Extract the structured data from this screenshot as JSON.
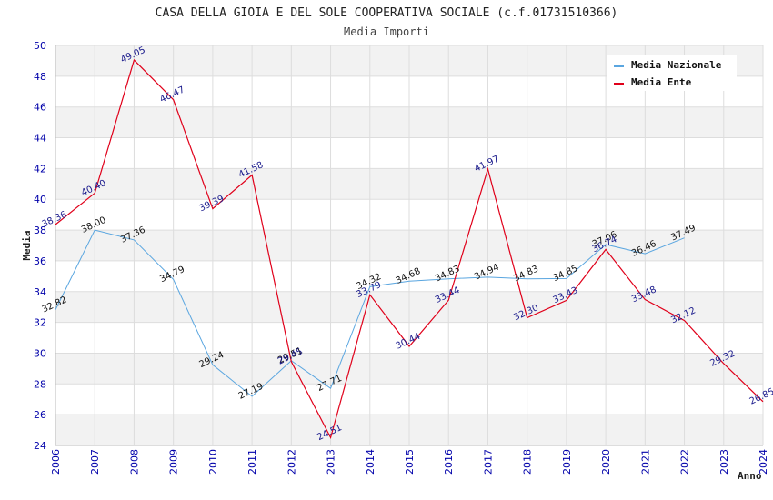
{
  "header": {
    "title": "CASA DELLA GIOIA E DEL SOLE COOPERATIVA SOCIALE (c.f.01731510366)",
    "subtitle": "Media Importi"
  },
  "colors": {
    "nazionale": "#5aa6e0",
    "ente": "#e0001a",
    "band": "#f2f2f2",
    "grid": "#dddddd",
    "tick": "#0000aa"
  },
  "chart_data": {
    "type": "line",
    "title": "CASA DELLA GIOIA E DEL SOLE COOPERATIVA SOCIALE (c.f.01731510366)",
    "subtitle": "Media Importi",
    "xlabel": "Anno",
    "ylabel": "Media",
    "ylim": [
      24,
      50
    ],
    "yticks": [
      "24",
      "26",
      "28",
      "30",
      "32",
      "34",
      "36",
      "38",
      "40",
      "42",
      "44",
      "46",
      "48",
      "50"
    ],
    "categories": [
      "2006",
      "2007",
      "2008",
      "2009",
      "2010",
      "2011",
      "2012",
      "2013",
      "2014",
      "2015",
      "2016",
      "2017",
      "2018",
      "2019",
      "2020",
      "2021",
      "2022",
      "2023",
      "2024"
    ],
    "grid": true,
    "legend_position": "top-right",
    "series": [
      {
        "name": "Media Nazionale",
        "values": [
          32.82,
          38.0,
          37.36,
          34.79,
          29.24,
          27.19,
          29.51,
          27.71,
          34.32,
          34.68,
          34.83,
          34.94,
          34.83,
          34.85,
          37.06,
          36.46,
          37.49,
          null,
          null
        ],
        "labels": [
          "32.82",
          "38.00",
          "37.36",
          "34.79",
          "29.24",
          "27.19",
          "29.51",
          "27.71",
          "34.32",
          "34.68",
          "34.83",
          "34.94",
          "34.83",
          "34.85",
          "37.06",
          "36.46",
          "37.49",
          "",
          ""
        ]
      },
      {
        "name": "Media Ente",
        "values": [
          38.36,
          40.4,
          49.05,
          46.47,
          39.39,
          41.58,
          29.45,
          24.51,
          33.79,
          30.44,
          33.44,
          41.97,
          32.3,
          33.43,
          36.74,
          33.48,
          32.12,
          29.32,
          26.85
        ],
        "labels": [
          "38.36",
          "40.40",
          "49.05",
          "46.47",
          "39.39",
          "41.58",
          "29.45",
          "24.51",
          "33.79",
          "30.44",
          "33.44",
          "41.97",
          "32.30",
          "33.43",
          "36.74",
          "33.48",
          "32.12",
          "29.32",
          "26.85"
        ]
      }
    ]
  }
}
